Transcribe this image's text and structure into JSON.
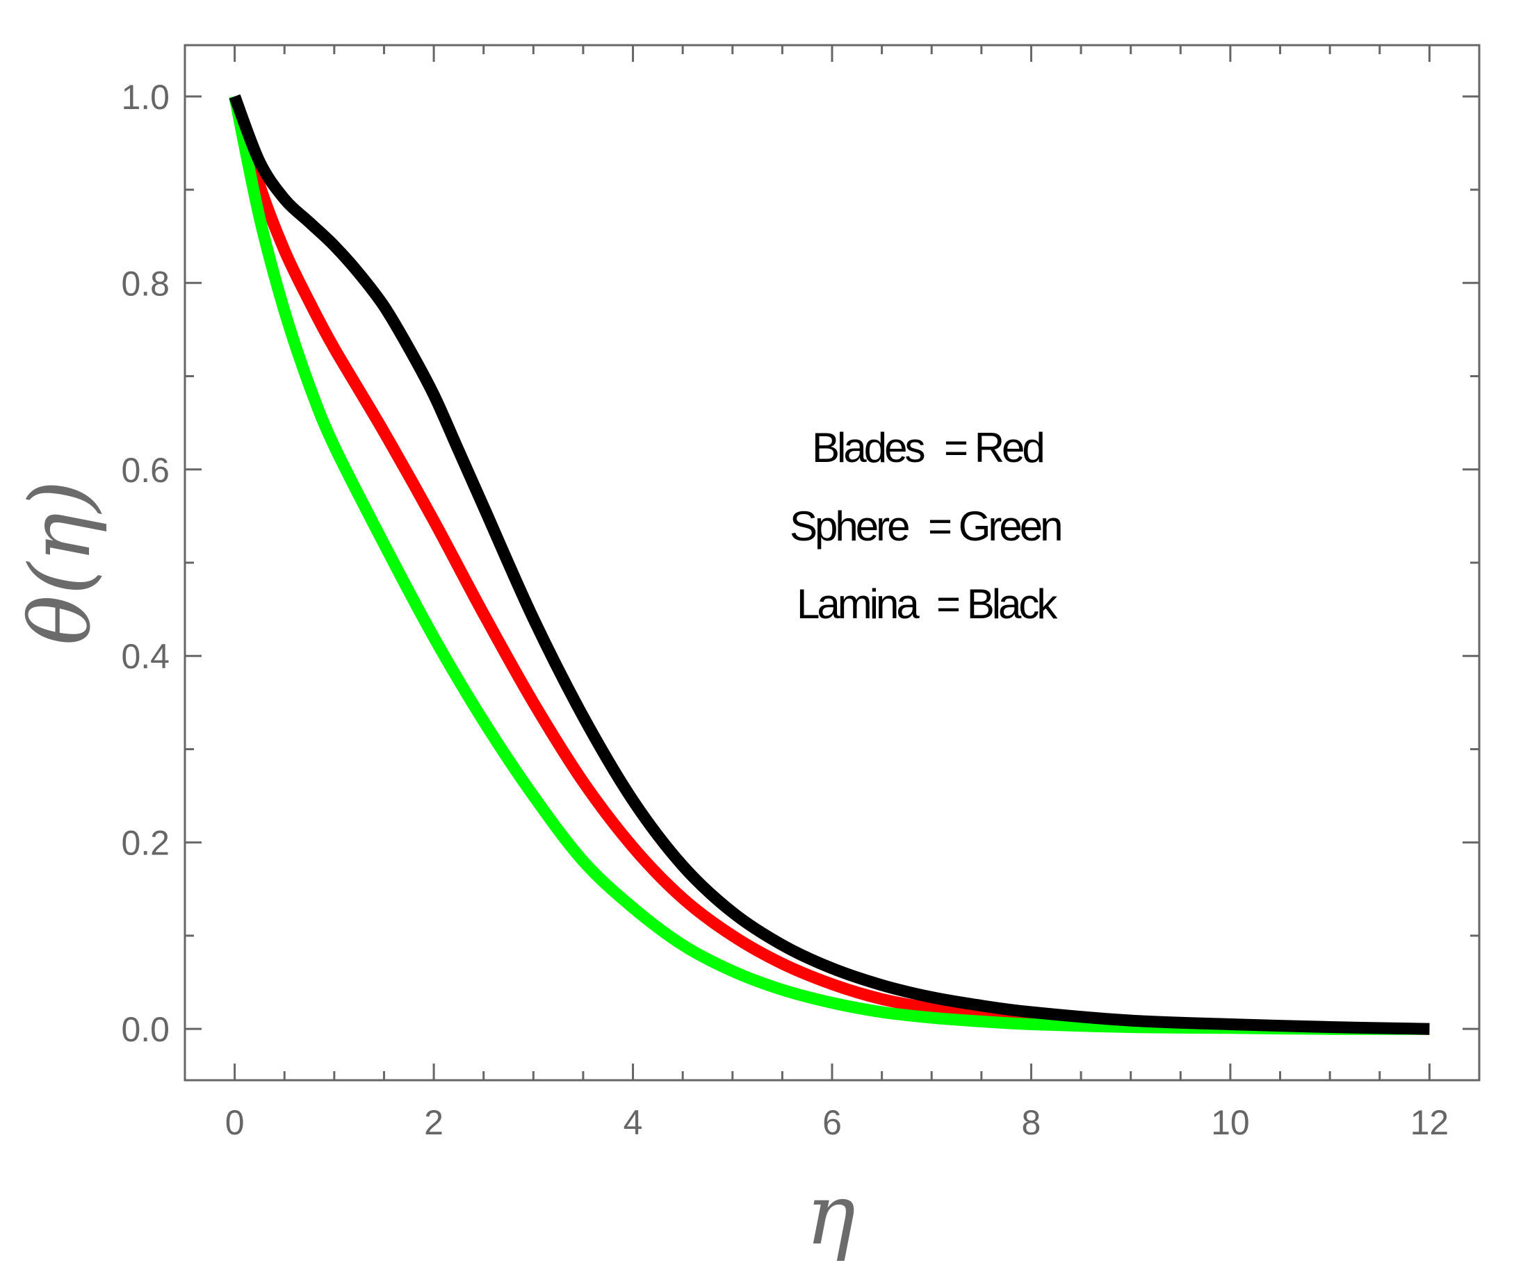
{
  "chart_data": {
    "type": "line",
    "title": "",
    "xlabel": "η",
    "ylabel": "θ(η)",
    "xlim": [
      -0.5,
      12.5
    ],
    "ylim": [
      -0.055,
      1.055
    ],
    "grid": false,
    "x_ticks": [
      0,
      2,
      4,
      6,
      8,
      10,
      12
    ],
    "x_tick_labels": [
      "0",
      "2",
      "4",
      "6",
      "8",
      "10",
      "12"
    ],
    "y_ticks": [
      0.0,
      0.2,
      0.4,
      0.6,
      0.8,
      1.0
    ],
    "y_tick_labels": [
      "0.0",
      "0.2",
      "0.4",
      "0.6",
      "0.8",
      "1.0"
    ],
    "annotations": [
      {
        "name": "Blades",
        "eq": "= Red"
      },
      {
        "name": "Sphere",
        "eq": "= Green"
      },
      {
        "name": "Lamina",
        "eq": "= Black"
      }
    ],
    "series": [
      {
        "color": "#ff0000",
        "x": [
          0,
          0.25,
          0.5,
          0.75,
          1,
          1.5,
          2,
          2.5,
          3,
          3.5,
          4,
          4.5,
          5,
          5.5,
          6,
          6.5,
          7,
          7.5,
          8,
          9,
          10,
          11,
          12
        ],
        "y": [
          1.0,
          0.905,
          0.835,
          0.78,
          0.73,
          0.64,
          0.545,
          0.445,
          0.35,
          0.265,
          0.195,
          0.14,
          0.1,
          0.07,
          0.048,
          0.032,
          0.022,
          0.015,
          0.01,
          0.005,
          0.002,
          0.001,
          0.0
        ]
      },
      {
        "color": "#00ff00",
        "x": [
          0,
          0.25,
          0.5,
          0.75,
          1,
          1.5,
          2,
          2.5,
          3,
          3.5,
          4,
          4.5,
          5,
          5.5,
          6,
          6.5,
          7,
          7.5,
          8,
          9,
          10,
          11,
          12
        ],
        "y": [
          1.0,
          0.87,
          0.77,
          0.69,
          0.625,
          0.52,
          0.42,
          0.33,
          0.25,
          0.18,
          0.13,
          0.09,
          0.062,
          0.042,
          0.028,
          0.018,
          0.012,
          0.008,
          0.005,
          0.002,
          0.001,
          0.0,
          0.0
        ]
      },
      {
        "color": "#000000",
        "x": [
          0,
          0.25,
          0.5,
          0.75,
          1,
          1.25,
          1.5,
          1.75,
          2,
          2.25,
          2.5,
          3,
          3.5,
          4,
          4.5,
          5,
          5.5,
          6,
          6.5,
          7,
          7.5,
          8,
          9,
          10,
          11,
          12
        ],
        "y": [
          1.0,
          0.93,
          0.89,
          0.865,
          0.84,
          0.81,
          0.775,
          0.73,
          0.68,
          0.62,
          0.56,
          0.44,
          0.335,
          0.245,
          0.175,
          0.125,
          0.09,
          0.065,
          0.047,
          0.034,
          0.025,
          0.018,
          0.009,
          0.005,
          0.002,
          0.0
        ]
      }
    ]
  }
}
